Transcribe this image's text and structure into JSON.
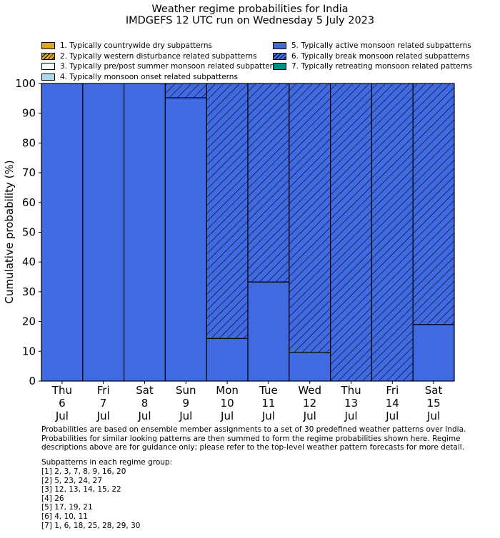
{
  "title_line1": "Weather regime probabilities for India",
  "title_line2": "IMDGEFS 12 UTC run on Wednesday 5 July 2023",
  "legend": [
    {
      "label": "1. Typically countrywide dry subpatterns",
      "color": "#daa520",
      "hatch": false
    },
    {
      "label": "2. Typically western disturbance related subpatterns",
      "color": "#daa520",
      "hatch": true
    },
    {
      "label": "3. Typically pre/post summer monsoon related subpatterns",
      "color": "#f0ffff",
      "hatch": false
    },
    {
      "label": "4. Typically monsoon onset related subpatterns",
      "color": "#add8e6",
      "hatch": false
    },
    {
      "label": "5. Typically active monsoon related subpatterns",
      "color": "#4169e1",
      "hatch": false
    },
    {
      "label": "6. Typically break monsoon related subpatterns",
      "color": "#4169e1",
      "hatch": true
    },
    {
      "label": "7. Typically retreating monsoon related patterns",
      "color": "#008b8b",
      "hatch": false
    }
  ],
  "chart_data": {
    "type": "bar",
    "stacked": true,
    "ylabel": "Cumulative probability (%)",
    "ylim": [
      0,
      100
    ],
    "yticks": [
      0,
      10,
      20,
      30,
      40,
      50,
      60,
      70,
      80,
      90,
      100
    ],
    "categories": [
      [
        "Thu",
        "6",
        "Jul"
      ],
      [
        "Fri",
        "7",
        "Jul"
      ],
      [
        "Sat",
        "8",
        "Jul"
      ],
      [
        "Sun",
        "9",
        "Jul"
      ],
      [
        "Mon",
        "10",
        "Jul"
      ],
      [
        "Tue",
        "11",
        "Jul"
      ],
      [
        "Wed",
        "12",
        "Jul"
      ],
      [
        "Thu",
        "13",
        "Jul"
      ],
      [
        "Fri",
        "14",
        "Jul"
      ],
      [
        "Sat",
        "15",
        "Jul"
      ]
    ],
    "series": [
      {
        "name": "5. Typically active monsoon related subpatterns",
        "color": "#4169e1",
        "hatch": false,
        "values": [
          100,
          100,
          100,
          95.2,
          14.3,
          33.3,
          9.5,
          0,
          0,
          19.0
        ]
      },
      {
        "name": "6. Typically break monsoon related subpatterns",
        "color": "#4169e1",
        "hatch": true,
        "values": [
          0,
          0,
          0,
          4.8,
          85.7,
          66.7,
          90.5,
          100,
          100,
          81.0
        ]
      }
    ]
  },
  "footer": {
    "description": "Probabilities are based on ensemble member assignments to a set of 30 predefined weather patterns over India.\nProbabilities for similar looking patterns are then summed to form the regime probabilities shown here. Regime\ndescriptions above are for guidance only; please refer to the top-level weather pattern forecasts for more detail.",
    "groups_heading": "Subpatterns in each regime group:",
    "groups": [
      "[1] 2, 3, 7, 8, 9, 16, 20",
      "[2] 5, 23, 24, 27",
      "[3] 12, 13, 14, 15, 22",
      "[4] 26",
      "[5] 17, 19, 21",
      "[6] 4, 10, 11",
      "[7] 1, 6, 18, 25, 28, 29, 30"
    ]
  }
}
